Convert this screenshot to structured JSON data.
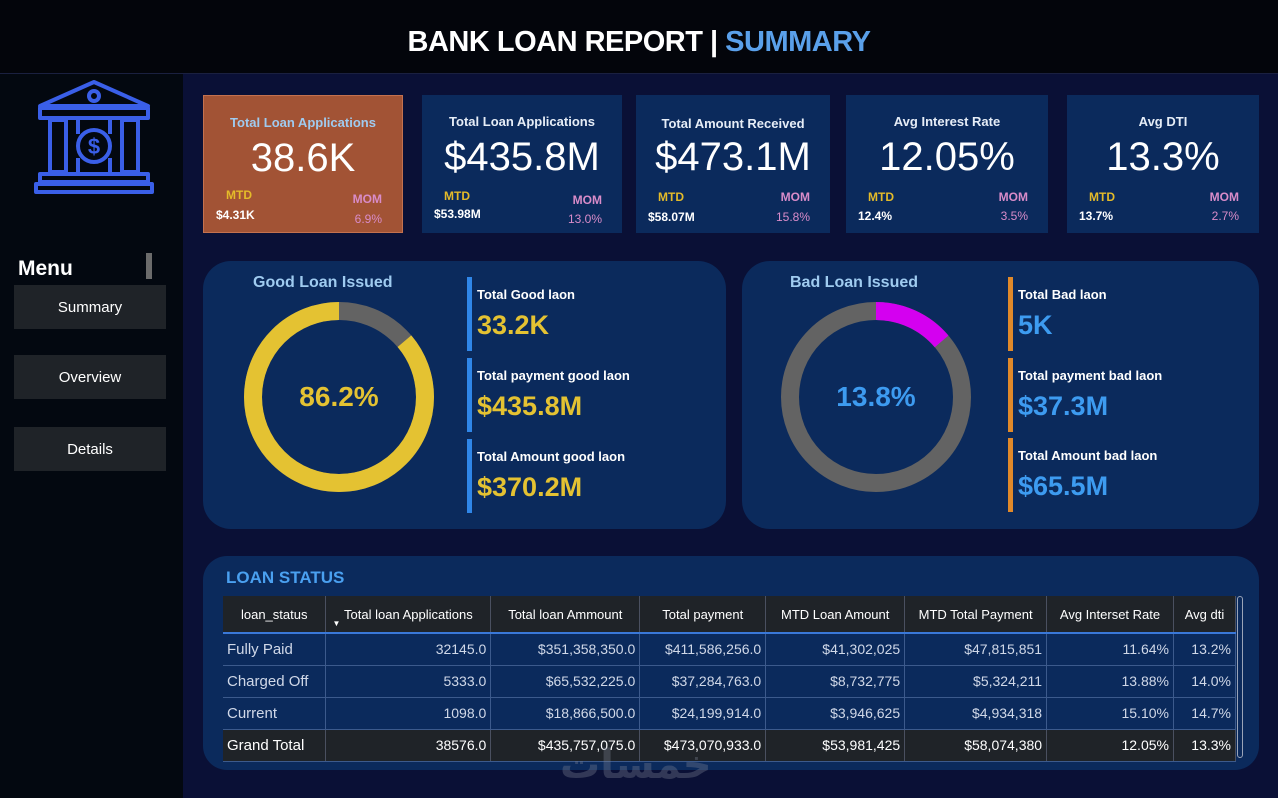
{
  "header": {
    "title_main": "BANK LOAN REPORT | ",
    "title_accent": "SUMMARY"
  },
  "sidebar": {
    "menu_label": "Menu",
    "items": [
      {
        "label": "Summary"
      },
      {
        "label": "Overview"
      },
      {
        "label": "Details"
      }
    ]
  },
  "kpis": [
    {
      "title": "Total Loan Applications",
      "value": "38.6K",
      "mtd_label": "MTD",
      "mtd_value": "$4.31K",
      "mom_label": "MOM",
      "mom_value": "6.9%"
    },
    {
      "title": "Total Loan Applications",
      "value": "$435.8M",
      "mtd_label": "MTD",
      "mtd_value": "$53.98M",
      "mom_label": "MOM",
      "mom_value": "13.0%"
    },
    {
      "title": "Total Amount Received",
      "value": "$473.1M",
      "mtd_label": "MTD",
      "mtd_value": "$58.07M",
      "mom_label": "MOM",
      "mom_value": "15.8%"
    },
    {
      "title": "Avg Interest Rate",
      "value": "12.05%",
      "mtd_label": "MTD",
      "mtd_value": "12.4%",
      "mom_label": "MOM",
      "mom_value": "3.5%"
    },
    {
      "title": "Avg DTI",
      "value": "13.3%",
      "mtd_label": "MTD",
      "mtd_value": "13.7%",
      "mom_label": "MOM",
      "mom_value": "2.7%"
    }
  ],
  "good_loan": {
    "title": "Good Loan Issued",
    "percent_label": "86.2%",
    "percent": 0.862,
    "colors": {
      "fill": "#e4c232",
      "rest": "#636363",
      "accent": "#e4c232",
      "bar": "#2f86e8"
    },
    "stats": [
      {
        "label": "Total Good laon",
        "value": "33.2K"
      },
      {
        "label": "Total payment good laon",
        "value": "$435.8M"
      },
      {
        "label": "Total Amount good laon",
        "value": "$370.2M"
      }
    ]
  },
  "bad_loan": {
    "title": "Bad Loan Issued",
    "percent_label": "13.8%",
    "percent": 0.138,
    "colors": {
      "fill": "#d400f0",
      "rest": "#636363",
      "accent": "#3d9bf0",
      "bar": "#e0892a"
    },
    "stats": [
      {
        "label": "Total Bad laon",
        "value": "5K"
      },
      {
        "label": "Total payment bad laon",
        "value": "$37.3M"
      },
      {
        "label": "Total Amount bad laon",
        "value": "$65.5M"
      }
    ]
  },
  "loan_status": {
    "title": "LOAN STATUS",
    "columns": [
      "loan_status",
      "Total loan Applications",
      "Total loan Ammount",
      "Total payment",
      "MTD Loan Amount",
      "MTD Total Payment",
      "Avg Interset Rate",
      "Avg dti"
    ],
    "rows": [
      [
        "Fully Paid",
        "32145.0",
        "$351,358,350.0",
        "$411,586,256.0",
        "$41,302,025",
        "$47,815,851",
        "11.64%",
        "13.2%"
      ],
      [
        "Charged Off",
        "5333.0",
        "$65,532,225.0",
        "$37,284,763.0",
        "$8,732,775",
        "$5,324,211",
        "13.88%",
        "14.0%"
      ],
      [
        "Current",
        "1098.0",
        "$18,866,500.0",
        "$24,199,914.0",
        "$3,946,625",
        "$4,934,318",
        "15.10%",
        "14.7%"
      ]
    ],
    "total": [
      "Grand Total",
      "38576.0",
      "$435,757,075.0",
      "$473,070,933.0",
      "$53,981,425",
      "$58,074,380",
      "12.05%",
      "13.3%"
    ]
  },
  "watermark": "خمسات"
}
